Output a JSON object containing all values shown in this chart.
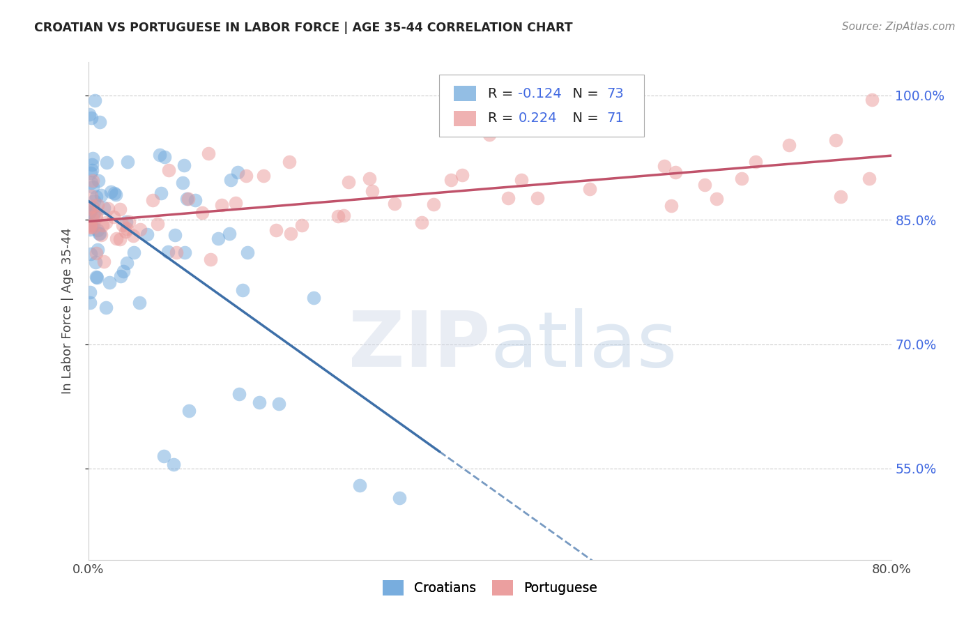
{
  "title": "CROATIAN VS PORTUGUESE IN LABOR FORCE | AGE 35-44 CORRELATION CHART",
  "source": "Source: ZipAtlas.com",
  "ylabel": "In Labor Force | Age 35-44",
  "xlim": [
    0.0,
    0.8
  ],
  "ylim": [
    0.44,
    1.04
  ],
  "yticks": [
    0.55,
    0.7,
    0.85,
    1.0
  ],
  "ytick_labels": [
    "55.0%",
    "70.0%",
    "85.0%",
    "100.0%"
  ],
  "xtick_labels": [
    "0.0%",
    "",
    "",
    "",
    "",
    "",
    "",
    "",
    "80.0%"
  ],
  "croatian_color": "#6fa8dc",
  "portuguese_color": "#ea9999",
  "blue_line_color": "#3d6fa8",
  "pink_line_color": "#c0526a",
  "legend_R_croatian": "-0.124",
  "legend_N_croatian": "73",
  "legend_R_portuguese": "0.224",
  "legend_N_portuguese": "71",
  "background_color": "#ffffff",
  "grid_color": "#cccccc",
  "title_color": "#222222",
  "source_color": "#888888",
  "axis_label_color": "#444444",
  "right_tick_color": "#4169e1"
}
